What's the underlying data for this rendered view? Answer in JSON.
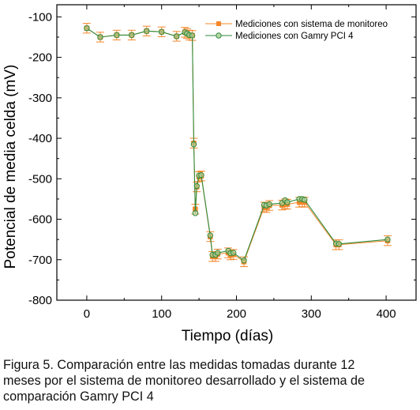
{
  "chart_data": {
    "type": "line",
    "xlabel": "Tiempo (días)",
    "ylabel": "Potencial de media celda (mV)",
    "xlim": [
      -40,
      440
    ],
    "ylim": [
      -800,
      -70
    ],
    "x_ticks": [
      0,
      100,
      200,
      300,
      400
    ],
    "y_ticks": [
      -100,
      -200,
      -300,
      -400,
      -500,
      -600,
      -700,
      -800
    ],
    "grid": false,
    "legend_position": "top-right",
    "series": [
      {
        "name": "Mediciones con sistema de monitoreo",
        "color": "#f4872a",
        "marker": "square",
        "points": [
          {
            "x": 0,
            "y": -128
          },
          {
            "x": 18,
            "y": -150
          },
          {
            "x": 40,
            "y": -145
          },
          {
            "x": 60,
            "y": -145
          },
          {
            "x": 80,
            "y": -135
          },
          {
            "x": 100,
            "y": -137
          },
          {
            "x": 120,
            "y": -148
          },
          {
            "x": 131,
            "y": -138
          },
          {
            "x": 134,
            "y": -141
          },
          {
            "x": 137,
            "y": -145
          },
          {
            "x": 141,
            "y": -146
          },
          {
            "x": 143,
            "y": -412
          },
          {
            "x": 145,
            "y": -575
          },
          {
            "x": 147,
            "y": -520
          },
          {
            "x": 150,
            "y": -495
          },
          {
            "x": 153,
            "y": -493
          },
          {
            "x": 165,
            "y": -643
          },
          {
            "x": 168,
            "y": -692
          },
          {
            "x": 172,
            "y": -692
          },
          {
            "x": 175,
            "y": -686
          },
          {
            "x": 189,
            "y": -683
          },
          {
            "x": 192,
            "y": -688
          },
          {
            "x": 196,
            "y": -687
          },
          {
            "x": 210,
            "y": -705
          },
          {
            "x": 237,
            "y": -570
          },
          {
            "x": 240,
            "y": -571
          },
          {
            "x": 244,
            "y": -566
          },
          {
            "x": 261,
            "y": -565
          },
          {
            "x": 265,
            "y": -562
          },
          {
            "x": 268,
            "y": -563
          },
          {
            "x": 284,
            "y": -558
          },
          {
            "x": 288,
            "y": -557
          },
          {
            "x": 291,
            "y": -558
          },
          {
            "x": 333,
            "y": -663
          },
          {
            "x": 337,
            "y": -663
          },
          {
            "x": 402,
            "y": -653
          }
        ],
        "yerr": 12
      },
      {
        "name": "Mediciones con Gamry PCI 4",
        "color": "#2f8a3a",
        "marker": "circle",
        "points": [
          {
            "x": 0,
            "y": -128
          },
          {
            "x": 18,
            "y": -150
          },
          {
            "x": 40,
            "y": -145
          },
          {
            "x": 60,
            "y": -145
          },
          {
            "x": 80,
            "y": -135
          },
          {
            "x": 100,
            "y": -137
          },
          {
            "x": 120,
            "y": -148
          },
          {
            "x": 131,
            "y": -138
          },
          {
            "x": 134,
            "y": -141
          },
          {
            "x": 137,
            "y": -145
          },
          {
            "x": 141,
            "y": -146
          },
          {
            "x": 143,
            "y": -415
          },
          {
            "x": 145,
            "y": -585
          },
          {
            "x": 147,
            "y": -518
          },
          {
            "x": 150,
            "y": -492
          },
          {
            "x": 153,
            "y": -491
          },
          {
            "x": 165,
            "y": -640
          },
          {
            "x": 168,
            "y": -688
          },
          {
            "x": 172,
            "y": -688
          },
          {
            "x": 175,
            "y": -683
          },
          {
            "x": 189,
            "y": -678
          },
          {
            "x": 192,
            "y": -684
          },
          {
            "x": 196,
            "y": -683
          },
          {
            "x": 210,
            "y": -702
          },
          {
            "x": 237,
            "y": -565
          },
          {
            "x": 240,
            "y": -566
          },
          {
            "x": 244,
            "y": -563
          },
          {
            "x": 261,
            "y": -560
          },
          {
            "x": 265,
            "y": -553
          },
          {
            "x": 268,
            "y": -558
          },
          {
            "x": 284,
            "y": -550
          },
          {
            "x": 288,
            "y": -550
          },
          {
            "x": 291,
            "y": -552
          },
          {
            "x": 333,
            "y": -660
          },
          {
            "x": 337,
            "y": -661
          },
          {
            "x": 402,
            "y": -650
          }
        ]
      }
    ]
  },
  "caption": {
    "line1": "Figura 5. Comparación entre las medidas tomadas durante 12",
    "line2": "meses por el sistema de monitoreo desarrollado y el sistema de",
    "line3": "comparación Gamry PCI 4"
  }
}
